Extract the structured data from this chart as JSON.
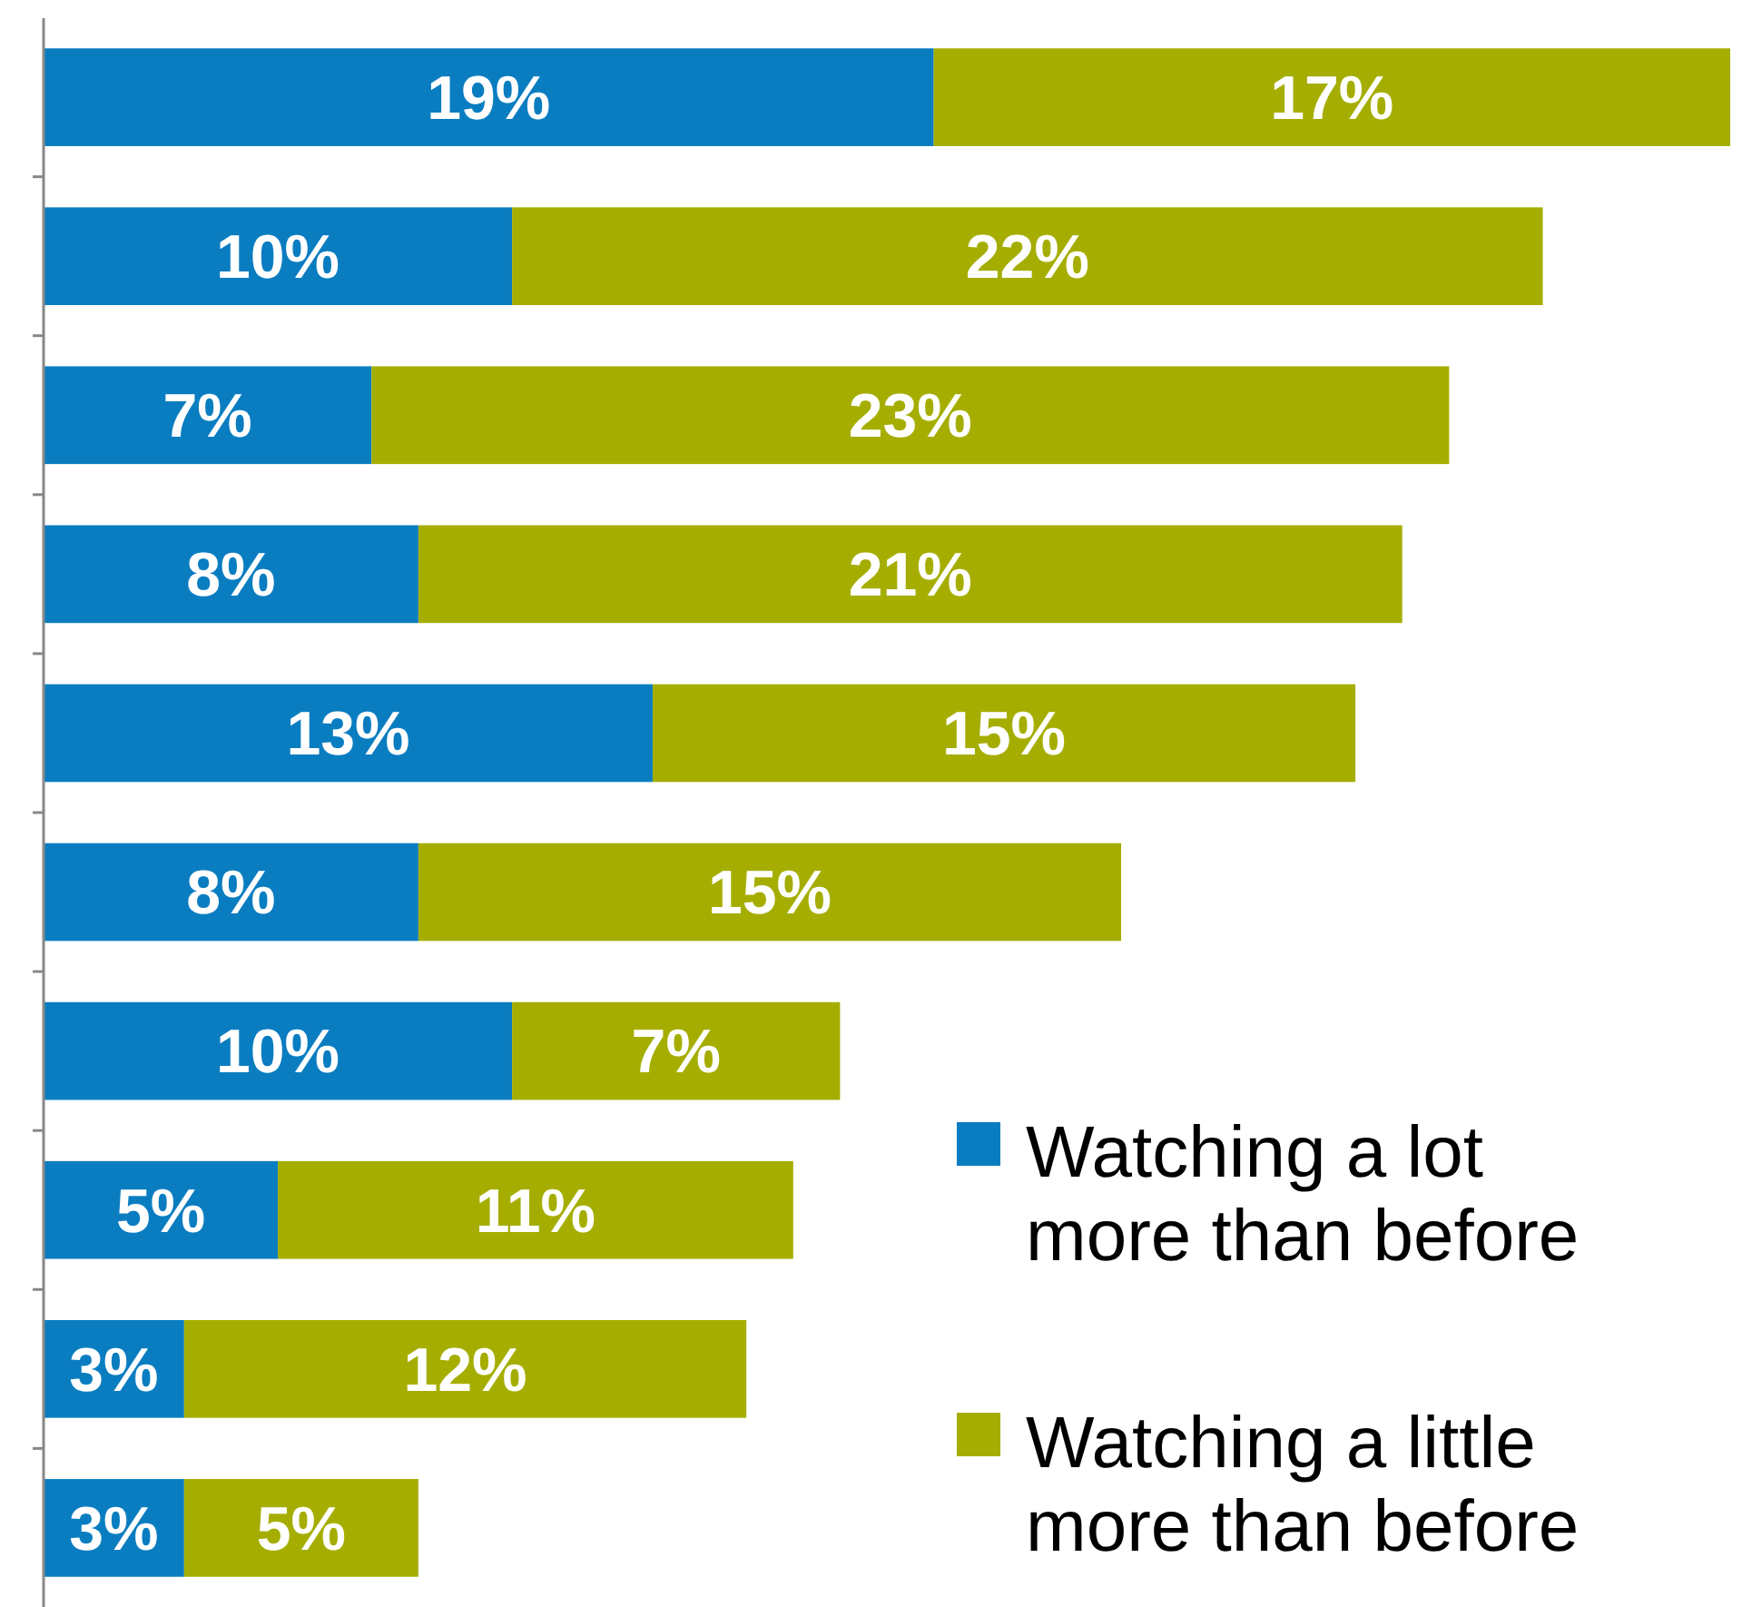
{
  "chart_data": {
    "type": "bar",
    "orientation": "horizontal",
    "stacked": true,
    "legend": "bottom right",
    "categories": [
      null,
      null,
      null,
      null,
      null,
      null,
      null,
      null,
      null,
      null
    ],
    "series": [
      {
        "name": "Watching a lot more than before",
        "color": "#0a7dc1",
        "values": [
          19,
          10,
          7,
          8,
          13,
          8,
          10,
          5,
          3,
          3
        ],
        "value_labels": [
          "19%",
          "10%",
          "7%",
          "8%",
          "13%",
          "8%",
          "10%",
          "5%",
          "3%",
          "3%"
        ]
      },
      {
        "name": "Watching a little more than before",
        "color": "#a5ae00",
        "values": [
          17,
          22,
          23,
          21,
          15,
          15,
          7,
          11,
          12,
          5
        ],
        "value_labels": [
          "17%",
          "22%",
          "23%",
          "21%",
          "15%",
          "15%",
          "7%",
          "11%",
          "12%",
          "5%"
        ]
      }
    ]
  }
}
